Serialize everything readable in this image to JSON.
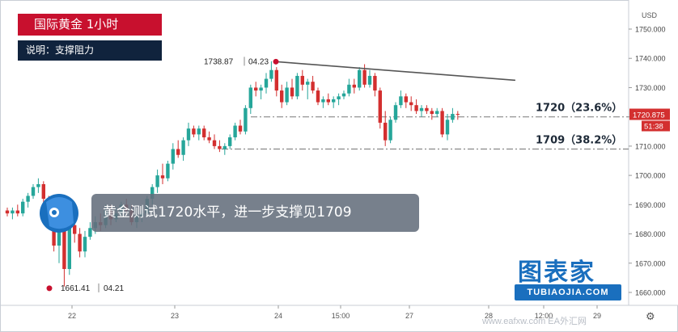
{
  "header": {
    "title": "国际黄金  1小时",
    "note": "说明：支撑阻力"
  },
  "banner_text": "黄金测试1720水平，进一步支撑见1709",
  "logo": {
    "main": "图表家",
    "sub": "TUBIAOJIA.COM"
  },
  "watermark": "www.eafxw.com EA外汇网",
  "colors": {
    "up": "#26a69a",
    "down": "#d32f2f",
    "title_bg": "#c8102e",
    "note_bg": "#10233d",
    "last_price_bg": "#d32f2f"
  },
  "chart_data": {
    "type": "candlestick",
    "currency": "USD",
    "ylim": [
      1656,
      1756
    ],
    "y_ticks": [
      1660,
      1670,
      1680,
      1690,
      1700,
      1710,
      1720,
      1730,
      1740,
      1750
    ],
    "x_tick_labels": [
      "22",
      "23",
      "24",
      "15:00",
      "27",
      "28",
      "12:00",
      "29"
    ],
    "last_price": "1720.875",
    "countdown": "51:38",
    "high_marker": {
      "price": "1738.87",
      "date": "04.23"
    },
    "low_marker": {
      "price": "1661.41",
      "date": "04.21"
    },
    "resistance_trendline": {
      "from": 1738.87,
      "to": 1732.5
    },
    "levels": [
      {
        "value": 1720,
        "label": "1720（23.6%）"
      },
      {
        "value": 1709,
        "label": "1709（38.2%）"
      }
    ],
    "candles": [
      [
        1688,
        1689,
        1686,
        1687
      ],
      [
        1687,
        1689,
        1685,
        1688
      ],
      [
        1688,
        1690,
        1686,
        1687
      ],
      [
        1687,
        1692,
        1686,
        1691
      ],
      [
        1691,
        1694,
        1689,
        1693
      ],
      [
        1693,
        1697,
        1692,
        1696
      ],
      [
        1696,
        1699,
        1694,
        1697
      ],
      [
        1697,
        1698,
        1690,
        1692
      ],
      [
        1692,
        1693,
        1683,
        1685
      ],
      [
        1685,
        1688,
        1674,
        1676
      ],
      [
        1676,
        1684,
        1670,
        1682
      ],
      [
        1682,
        1684,
        1662,
        1668
      ],
      [
        1668,
        1686,
        1666,
        1683
      ],
      [
        1683,
        1686,
        1677,
        1680
      ],
      [
        1680,
        1682,
        1672,
        1674
      ],
      [
        1674,
        1681,
        1672,
        1679
      ],
      [
        1679,
        1684,
        1678,
        1682
      ],
      [
        1682,
        1686,
        1680,
        1684
      ],
      [
        1684,
        1687,
        1681,
        1683
      ],
      [
        1683,
        1690,
        1682,
        1688
      ],
      [
        1688,
        1690,
        1683,
        1685
      ],
      [
        1685,
        1689,
        1684,
        1687
      ],
      [
        1687,
        1691,
        1686,
        1690
      ],
      [
        1690,
        1692,
        1687,
        1688
      ],
      [
        1688,
        1690,
        1683,
        1684
      ],
      [
        1684,
        1687,
        1682,
        1686
      ],
      [
        1686,
        1688,
        1684,
        1687
      ],
      [
        1687,
        1693,
        1686,
        1692
      ],
      [
        1692,
        1697,
        1690,
        1696
      ],
      [
        1696,
        1702,
        1694,
        1700
      ],
      [
        1700,
        1704,
        1697,
        1699
      ],
      [
        1699,
        1705,
        1698,
        1704
      ],
      [
        1704,
        1711,
        1702,
        1709
      ],
      [
        1709,
        1712,
        1706,
        1707
      ],
      [
        1707,
        1713,
        1705,
        1712
      ],
      [
        1712,
        1718,
        1710,
        1716
      ],
      [
        1716,
        1717,
        1713,
        1714
      ],
      [
        1714,
        1717,
        1712,
        1716
      ],
      [
        1716,
        1717,
        1712,
        1713
      ],
      [
        1713,
        1715,
        1711,
        1712
      ],
      [
        1712,
        1714,
        1709,
        1710
      ],
      [
        1710,
        1712,
        1708,
        1709
      ],
      [
        1709,
        1711,
        1707,
        1710
      ],
      [
        1710,
        1714,
        1709,
        1713
      ],
      [
        1713,
        1718,
        1712,
        1717
      ],
      [
        1717,
        1719,
        1714,
        1715
      ],
      [
        1715,
        1724,
        1714,
        1723
      ],
      [
        1723,
        1731,
        1721,
        1730
      ],
      [
        1730,
        1732,
        1727,
        1729
      ],
      [
        1729,
        1731,
        1726,
        1730
      ],
      [
        1730,
        1735,
        1728,
        1733
      ],
      [
        1733,
        1739,
        1732,
        1736
      ],
      [
        1736,
        1737,
        1727,
        1729
      ],
      [
        1729,
        1731,
        1723,
        1725
      ],
      [
        1725,
        1732,
        1724,
        1730
      ],
      [
        1730,
        1733,
        1726,
        1727
      ],
      [
        1727,
        1735,
        1726,
        1734
      ],
      [
        1734,
        1736,
        1729,
        1731
      ],
      [
        1731,
        1733,
        1726,
        1732
      ],
      [
        1732,
        1734,
        1728,
        1729
      ],
      [
        1729,
        1730,
        1724,
        1725
      ],
      [
        1725,
        1727,
        1723,
        1726
      ],
      [
        1726,
        1728,
        1724,
        1725
      ],
      [
        1725,
        1727,
        1723,
        1726
      ],
      [
        1726,
        1728,
        1724,
        1727
      ],
      [
        1727,
        1729,
        1726,
        1728
      ],
      [
        1728,
        1733,
        1727,
        1731
      ],
      [
        1731,
        1733,
        1728,
        1730
      ],
      [
        1730,
        1737,
        1729,
        1736
      ],
      [
        1736,
        1738,
        1730,
        1731
      ],
      [
        1731,
        1736,
        1730,
        1734
      ],
      [
        1734,
        1735,
        1727,
        1729
      ],
      [
        1729,
        1730,
        1716,
        1718
      ],
      [
        1718,
        1722,
        1710,
        1712
      ],
      [
        1712,
        1720,
        1711,
        1719
      ],
      [
        1719,
        1725,
        1718,
        1724
      ],
      [
        1724,
        1729,
        1723,
        1727
      ],
      [
        1727,
        1728,
        1723,
        1725
      ],
      [
        1725,
        1727,
        1722,
        1724
      ],
      [
        1724,
        1726,
        1721,
        1722
      ],
      [
        1722,
        1724,
        1720,
        1723
      ],
      [
        1723,
        1724,
        1721,
        1722
      ],
      [
        1722,
        1723,
        1719,
        1721
      ],
      [
        1721,
        1723,
        1720,
        1722
      ],
      [
        1722,
        1723,
        1713,
        1714
      ],
      [
        1714,
        1721,
        1712,
        1719
      ],
      [
        1719,
        1723,
        1718,
        1721
      ],
      [
        1721,
        1722,
        1719,
        1720.875
      ]
    ]
  }
}
